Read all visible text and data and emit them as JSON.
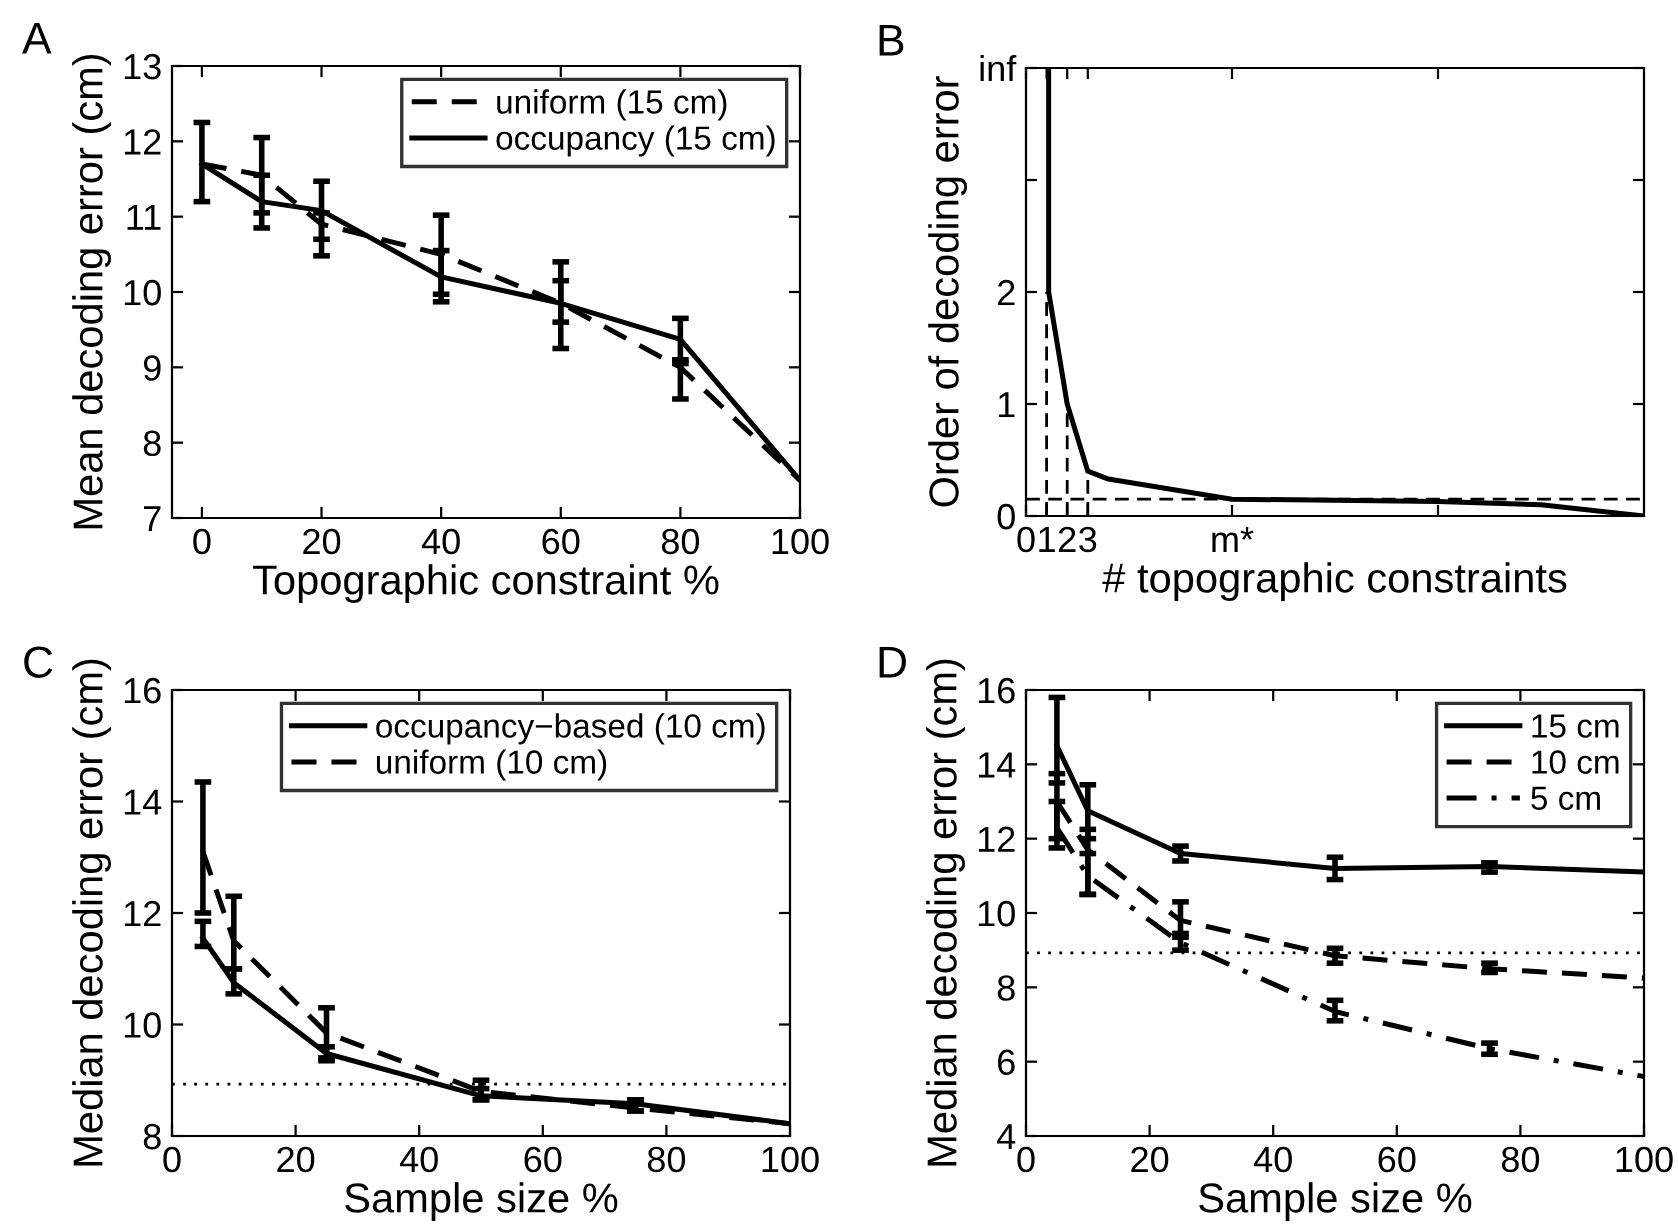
{
  "chart_data": [
    {
      "type": "line",
      "title": "A",
      "xlabel": "Topographic constraint %",
      "ylabel": "Mean decoding error (cm)",
      "x": [
        0,
        10,
        20,
        40,
        60,
        80,
        100
      ],
      "xlim": [
        -5,
        100
      ],
      "ylim": [
        7,
        13
      ],
      "xticks": [
        0,
        20,
        40,
        60,
        80,
        100
      ],
      "yticks": [
        7,
        8,
        9,
        10,
        11,
        12,
        13
      ],
      "legend": "top right",
      "grid": false,
      "series": [
        {
          "name": "uniform (15 cm)",
          "color": "#000000",
          "line_style": "dashed",
          "values": [
            11.7,
            11.55,
            10.9,
            10.5,
            9.85,
            9.0,
            7.5
          ],
          "errors": [
            null,
            [
              11.05,
              12.05
            ],
            [
              10.48,
              11.05
            ],
            [
              9.97,
              11.02
            ],
            [
              9.25,
              10.15
            ],
            [
              8.58,
              9.1
            ],
            null
          ]
        },
        {
          "name": "occupancy (15 cm)",
          "color": "#000000",
          "line_style": "solid",
          "values": [
            11.7,
            11.2,
            11.08,
            10.2,
            9.85,
            9.37,
            7.5
          ],
          "errors": [
            [
              11.2,
              12.25
            ],
            [
              10.85,
              11.55
            ],
            [
              10.7,
              11.47
            ],
            [
              9.87,
              10.55
            ],
            [
              9.6,
              10.4
            ],
            [
              9.05,
              9.65
            ],
            null
          ]
        }
      ]
    },
    {
      "type": "line",
      "title": "B",
      "xlabel": "# topographic constraints",
      "ylabel": "Order of decoding error",
      "xlim": [
        0,
        30
      ],
      "ylim": [
        0,
        4
      ],
      "xticks": [
        0,
        1,
        2,
        3,
        {
          "value": 10,
          "label": "m*"
        },
        {
          "value": 20,
          "label": null
        }
      ],
      "yticks": [
        0,
        1,
        2,
        {
          "value": 3,
          "label": null
        },
        {
          "value": 4,
          "label": "inf"
        }
      ],
      "legend": false,
      "grid": false,
      "ref_lines": [
        {
          "axis": "y",
          "value": 0.15,
          "label": null,
          "color": "#000000",
          "line_style": "dashed"
        }
      ],
      "series": [
        {
          "color": "#000000",
          "line_style": "solid",
          "x": [
            1.1,
            1.1,
            2,
            3,
            4,
            6,
            10,
            20,
            25,
            30
          ],
          "values": [
            4,
            2,
            1,
            0.4,
            0.33,
            0.27,
            0.15,
            0.13,
            0.1,
            0
          ]
        },
        {
          "color": "#000000",
          "line_style": "dashed",
          "x": [
            1,
            1
          ],
          "values": [
            0,
            2
          ]
        },
        {
          "color": "#000000",
          "line_style": "dashed",
          "x": [
            2,
            2
          ],
          "values": [
            0,
            1
          ]
        },
        {
          "color": "#000000",
          "line_style": "dashed",
          "x": [
            3,
            3
          ],
          "values": [
            0,
            0.4
          ]
        }
      ]
    },
    {
      "type": "line",
      "title": "C",
      "xlabel": "Sample size %",
      "ylabel": "Median decoding error (cm)",
      "x": [
        5,
        10,
        25,
        50,
        75,
        100
      ],
      "xlim": [
        0,
        100
      ],
      "ylim": [
        8,
        16
      ],
      "xticks": [
        0,
        20,
        40,
        60,
        80,
        100
      ],
      "yticks": [
        8,
        10,
        12,
        14,
        16
      ],
      "legend": "top right",
      "grid": false,
      "ref_lines": [
        {
          "axis": "y",
          "value": 8.93,
          "label": null,
          "color": "#000000",
          "line_style": "dotted"
        }
      ],
      "series": [
        {
          "name": "occupancy−based (10 cm)",
          "color": "#000000",
          "line_style": "solid",
          "values": [
            11.55,
            10.75,
            9.48,
            8.72,
            8.58,
            8.22
          ],
          "errors": [
            [
              11.4,
              11.85
            ],
            [
              10.55,
              11.0
            ],
            [
              9.35,
              9.6
            ],
            [
              8.65,
              8.85
            ],
            [
              8.45,
              8.65
            ],
            null
          ]
        },
        {
          "name": "uniform (10 cm)",
          "color": "#000000",
          "line_style": "dashed",
          "values": [
            13.1,
            11.5,
            9.85,
            8.8,
            8.5,
            8.22
          ],
          "errors": [
            [
              12.0,
              14.35
            ],
            [
              11.0,
              12.3
            ],
            [
              9.4,
              10.3
            ],
            [
              8.65,
              9.0
            ],
            [
              8.45,
              8.65
            ],
            null
          ]
        }
      ]
    },
    {
      "type": "line",
      "title": "D",
      "xlabel": "Sample size %",
      "ylabel": "Median decoding error (cm)",
      "x": [
        5,
        10,
        25,
        50,
        75,
        100
      ],
      "xlim": [
        0,
        100
      ],
      "ylim": [
        4,
        16
      ],
      "xticks": [
        0,
        20,
        40,
        60,
        80,
        100
      ],
      "yticks": [
        4,
        6,
        8,
        10,
        12,
        14,
        16
      ],
      "legend": "top right",
      "grid": false,
      "ref_lines": [
        {
          "axis": "y",
          "value": 8.93,
          "label": null,
          "color": "#000000",
          "line_style": "dotted"
        }
      ],
      "series": [
        {
          "name": "15 cm",
          "color": "#000000",
          "line_style": "solid",
          "values": [
            14.5,
            12.75,
            11.6,
            11.2,
            11.25,
            11.1
          ],
          "errors": [
            [
              13.5,
              15.8
            ],
            [
              12.0,
              13.45
            ],
            [
              11.4,
              11.8
            ],
            [
              10.9,
              11.5
            ],
            [
              11.1,
              11.35
            ],
            null
          ]
        },
        {
          "name": "10 cm",
          "color": "#000000",
          "line_style": "dashed",
          "values": [
            13.0,
            11.7,
            9.8,
            8.85,
            8.5,
            8.25
          ],
          "errors": [
            [
              12.0,
              13.75
            ],
            [
              10.5,
              12.25
            ],
            [
              9.35,
              10.3
            ],
            [
              8.65,
              9.05
            ],
            [
              8.4,
              8.65
            ],
            null
          ]
        },
        {
          "name": "5 cm",
          "color": "#000000",
          "line_style": "dashdot",
          "values": [
            12.3,
            11.0,
            9.2,
            7.35,
            6.35,
            5.6
          ],
          "errors": [
            [
              11.75,
              13.0
            ],
            [
              10.5,
              11.6
            ],
            [
              9.0,
              9.45
            ],
            [
              7.1,
              7.65
            ],
            [
              6.2,
              6.5
            ],
            null
          ]
        }
      ]
    }
  ]
}
